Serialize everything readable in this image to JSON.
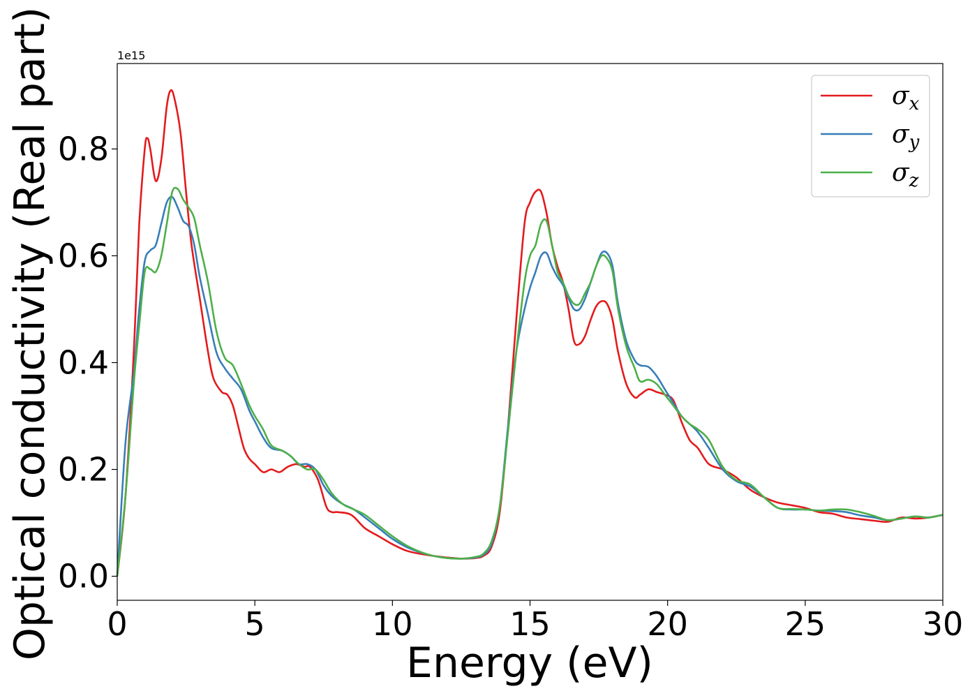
{
  "chart_data": {
    "type": "line",
    "title": "",
    "xlabel": "Energy (eV)",
    "ylabel": "Optical conductivity (Real part)",
    "y_offset_label": "1e15",
    "xlim": [
      0,
      30
    ],
    "ylim": [
      -0.045,
      0.96
    ],
    "xticks": [
      0,
      5,
      10,
      15,
      20,
      25,
      30
    ],
    "yticks": [
      0.0,
      0.2,
      0.4,
      0.6,
      0.8
    ],
    "xtick_labels": [
      "0",
      "5",
      "10",
      "15",
      "20",
      "25",
      "30"
    ],
    "ytick_labels": [
      "0.0",
      "0.2",
      "0.4",
      "0.6",
      "0.8"
    ],
    "grid": false,
    "legend_position": "upper right",
    "series": [
      {
        "name": "σx",
        "name_base": "σ",
        "name_sub": "x",
        "color": "#e41a1c",
        "x": [
          0,
          0.3,
          0.6,
          0.8,
          1.0,
          1.1,
          1.2,
          1.4,
          1.6,
          1.8,
          1.95,
          2.1,
          2.3,
          2.5,
          2.7,
          3.0,
          3.3,
          3.5,
          3.8,
          4.0,
          4.2,
          4.4,
          4.6,
          4.8,
          5.0,
          5.3,
          5.6,
          5.9,
          6.2,
          6.5,
          6.8,
          7.0,
          7.3,
          7.6,
          7.8,
          8.0,
          8.5,
          9.0,
          9.5,
          10.0,
          10.5,
          11.0,
          11.5,
          12.0,
          12.5,
          13.0,
          13.3,
          13.6,
          13.9,
          14.2,
          14.5,
          14.8,
          15.0,
          15.2,
          15.4,
          15.6,
          15.8,
          16.0,
          16.2,
          16.4,
          16.6,
          16.8,
          17.0,
          17.2,
          17.4,
          17.6,
          17.8,
          18.0,
          18.2,
          18.5,
          18.8,
          19.0,
          19.3,
          19.6,
          19.9,
          20.2,
          20.5,
          20.8,
          21.1,
          21.5,
          22.0,
          22.5,
          23.0,
          23.5,
          24.0,
          24.5,
          25.0,
          25.5,
          26.0,
          26.5,
          27.0,
          27.5,
          28.0,
          28.5,
          29.0,
          29.5,
          30.0
        ],
        "y": [
          0.0,
          0.15,
          0.42,
          0.66,
          0.8,
          0.82,
          0.8,
          0.74,
          0.78,
          0.88,
          0.91,
          0.89,
          0.83,
          0.72,
          0.62,
          0.52,
          0.42,
          0.37,
          0.345,
          0.34,
          0.32,
          0.28,
          0.24,
          0.22,
          0.21,
          0.195,
          0.2,
          0.195,
          0.205,
          0.21,
          0.205,
          0.205,
          0.18,
          0.13,
          0.12,
          0.12,
          0.115,
          0.09,
          0.075,
          0.06,
          0.048,
          0.042,
          0.038,
          0.035,
          0.033,
          0.034,
          0.038,
          0.055,
          0.12,
          0.28,
          0.48,
          0.66,
          0.7,
          0.72,
          0.72,
          0.68,
          0.62,
          0.58,
          0.55,
          0.5,
          0.44,
          0.435,
          0.45,
          0.48,
          0.505,
          0.515,
          0.51,
          0.48,
          0.42,
          0.36,
          0.335,
          0.34,
          0.35,
          0.345,
          0.34,
          0.33,
          0.29,
          0.255,
          0.24,
          0.21,
          0.2,
          0.185,
          0.162,
          0.148,
          0.138,
          0.133,
          0.128,
          0.12,
          0.117,
          0.11,
          0.107,
          0.104,
          0.102,
          0.11,
          0.108,
          0.11,
          0.115
        ]
      },
      {
        "name": "σy",
        "name_base": "σ",
        "name_sub": "y",
        "color": "#377eb8",
        "x": [
          0,
          0.3,
          0.6,
          0.8,
          1.0,
          1.2,
          1.4,
          1.6,
          1.8,
          2.0,
          2.2,
          2.4,
          2.6,
          2.8,
          3.0,
          3.3,
          3.6,
          3.9,
          4.2,
          4.5,
          4.8,
          5.0,
          5.3,
          5.6,
          6.0,
          6.3,
          6.6,
          6.9,
          7.2,
          7.5,
          7.8,
          8.2,
          8.6,
          9.0,
          9.5,
          10.0,
          10.5,
          11.0,
          11.5,
          12.0,
          12.5,
          13.0,
          13.3,
          13.6,
          13.9,
          14.2,
          14.5,
          14.8,
          15.0,
          15.2,
          15.4,
          15.6,
          15.8,
          16.0,
          16.2,
          16.4,
          16.6,
          16.8,
          17.0,
          17.2,
          17.4,
          17.6,
          17.8,
          18.0,
          18.2,
          18.5,
          18.8,
          19.0,
          19.3,
          19.6,
          19.9,
          20.2,
          20.5,
          20.8,
          21.1,
          21.5,
          22.0,
          22.5,
          23.0,
          23.5,
          24.0,
          24.5,
          25.0,
          25.5,
          26.0,
          26.5,
          27.0,
          27.5,
          28.0,
          28.5,
          29.0,
          29.5,
          30.0
        ],
        "y": [
          0.0,
          0.25,
          0.38,
          0.5,
          0.59,
          0.61,
          0.62,
          0.66,
          0.7,
          0.71,
          0.69,
          0.665,
          0.655,
          0.62,
          0.56,
          0.49,
          0.42,
          0.39,
          0.37,
          0.35,
          0.31,
          0.29,
          0.26,
          0.24,
          0.235,
          0.225,
          0.21,
          0.21,
          0.2,
          0.17,
          0.15,
          0.135,
          0.125,
          0.11,
          0.09,
          0.07,
          0.055,
          0.045,
          0.038,
          0.034,
          0.033,
          0.035,
          0.04,
          0.06,
          0.13,
          0.28,
          0.42,
          0.5,
          0.54,
          0.57,
          0.6,
          0.605,
          0.58,
          0.56,
          0.545,
          0.52,
          0.5,
          0.5,
          0.52,
          0.55,
          0.58,
          0.605,
          0.605,
          0.58,
          0.51,
          0.44,
          0.405,
          0.395,
          0.392,
          0.375,
          0.35,
          0.325,
          0.3,
          0.285,
          0.27,
          0.24,
          0.2,
          0.178,
          0.168,
          0.148,
          0.128,
          0.125,
          0.125,
          0.123,
          0.122,
          0.12,
          0.114,
          0.11,
          0.105,
          0.108,
          0.112,
          0.11,
          0.115
        ]
      },
      {
        "name": "σz",
        "name_base": "σ",
        "name_sub": "z",
        "color": "#4daf4a",
        "x": [
          0,
          0.3,
          0.6,
          0.8,
          1.0,
          1.2,
          1.4,
          1.6,
          1.8,
          2.0,
          2.2,
          2.4,
          2.6,
          2.8,
          3.0,
          3.3,
          3.6,
          3.9,
          4.2,
          4.5,
          4.8,
          5.0,
          5.3,
          5.6,
          6.0,
          6.3,
          6.6,
          6.9,
          7.2,
          7.5,
          7.8,
          8.2,
          8.6,
          9.0,
          9.5,
          10.0,
          10.5,
          11.0,
          11.5,
          12.0,
          12.5,
          13.0,
          13.3,
          13.6,
          13.9,
          14.2,
          14.5,
          14.8,
          15.0,
          15.2,
          15.4,
          15.6,
          15.8,
          16.0,
          16.2,
          16.4,
          16.6,
          16.8,
          17.0,
          17.2,
          17.4,
          17.6,
          17.8,
          18.0,
          18.2,
          18.5,
          18.8,
          19.0,
          19.3,
          19.6,
          19.9,
          20.2,
          20.5,
          20.8,
          21.1,
          21.5,
          22.0,
          22.5,
          23.0,
          23.5,
          24.0,
          24.5,
          25.0,
          25.5,
          26.0,
          26.5,
          27.0,
          27.5,
          28.0,
          28.5,
          29.0,
          29.5,
          30.0
        ],
        "y": [
          0.0,
          0.15,
          0.36,
          0.47,
          0.57,
          0.575,
          0.57,
          0.6,
          0.66,
          0.72,
          0.725,
          0.705,
          0.69,
          0.67,
          0.62,
          0.55,
          0.46,
          0.41,
          0.395,
          0.36,
          0.32,
          0.3,
          0.275,
          0.245,
          0.235,
          0.225,
          0.21,
          0.2,
          0.2,
          0.18,
          0.155,
          0.135,
          0.125,
          0.115,
          0.095,
          0.075,
          0.058,
          0.046,
          0.038,
          0.034,
          0.033,
          0.036,
          0.042,
          0.065,
          0.13,
          0.27,
          0.42,
          0.55,
          0.6,
          0.62,
          0.66,
          0.665,
          0.62,
          0.57,
          0.55,
          0.525,
          0.51,
          0.51,
          0.53,
          0.55,
          0.58,
          0.6,
          0.595,
          0.57,
          0.5,
          0.43,
          0.39,
          0.365,
          0.368,
          0.36,
          0.34,
          0.32,
          0.3,
          0.285,
          0.275,
          0.255,
          0.205,
          0.18,
          0.172,
          0.148,
          0.128,
          0.126,
          0.125,
          0.123,
          0.125,
          0.125,
          0.12,
          0.113,
          0.105,
          0.108,
          0.112,
          0.11,
          0.115
        ]
      }
    ]
  }
}
